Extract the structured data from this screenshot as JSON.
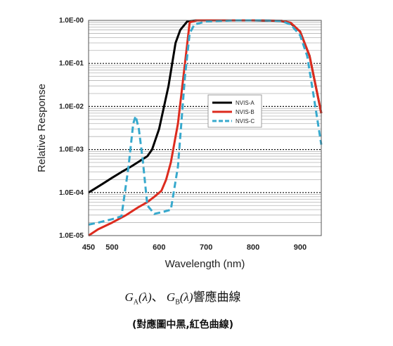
{
  "chart_data": {
    "type": "line",
    "title": "",
    "xlabel": "Wavelength (nm)",
    "ylabel": "Relative Response",
    "xlim": [
      450,
      945
    ],
    "ylim": [
      1e-05,
      1
    ],
    "yscale": "log",
    "x_ticks": [
      450,
      500,
      600,
      700,
      800,
      900
    ],
    "y_ticks": [
      1e-05,
      0.0001,
      0.001,
      0.01,
      0.1,
      1
    ],
    "y_tick_labels": [
      "1.0E-05",
      "1.0E-04",
      "1.0E-03",
      "1.0E-02",
      "1.0E-01",
      "1.0E-00"
    ],
    "grid": true,
    "legend_position": "center-right",
    "series": [
      {
        "name": "NVIS-A",
        "color": "#000000",
        "dash": "solid",
        "x": [
          450,
          480,
          500,
          520,
          540,
          560,
          575,
          585,
          600,
          620,
          635,
          645,
          660,
          680,
          720,
          800,
          860,
          880,
          900,
          920,
          945
        ],
        "y": [
          0.0001,
          0.00016,
          0.00022,
          0.0003,
          0.0004,
          0.00055,
          0.0007,
          0.001,
          0.003,
          0.03,
          0.3,
          0.6,
          0.95,
          1.0,
          1.0,
          1.0,
          0.97,
          0.85,
          0.55,
          0.15,
          0.007
        ]
      },
      {
        "name": "NVIS-B",
        "color": "#dd2b1e",
        "dash": "solid",
        "x": [
          450,
          470,
          500,
          530,
          555,
          575,
          590,
          605,
          615,
          625,
          640,
          655,
          665,
          680,
          720,
          800,
          860,
          880,
          900,
          920,
          945
        ],
        "y": [
          1e-05,
          1.4e-05,
          2e-05,
          3e-05,
          4.5e-05,
          6e-05,
          8e-05,
          0.00011,
          0.0002,
          0.0005,
          0.004,
          0.1,
          0.9,
          1.0,
          1.0,
          1.0,
          0.98,
          0.88,
          0.55,
          0.15,
          0.007
        ]
      },
      {
        "name": "NVIS-C",
        "color": "#37a9cd",
        "dash": "dashed",
        "x": [
          450,
          470,
          500,
          520,
          535,
          545,
          550,
          557,
          565,
          575,
          590,
          610,
          625,
          640,
          655,
          665,
          675,
          700,
          760,
          820,
          860,
          880,
          900,
          915,
          928,
          945
        ],
        "y": [
          1.8e-05,
          2e-05,
          2.4e-05,
          2.8e-05,
          0.0004,
          0.004,
          0.006,
          0.003,
          0.0006,
          5e-05,
          3.2e-05,
          3.6e-05,
          4e-05,
          0.0004,
          0.05,
          0.5,
          0.8,
          0.95,
          1.0,
          1.0,
          0.97,
          0.8,
          0.45,
          0.15,
          0.02,
          0.0013
        ]
      }
    ]
  },
  "caption": {
    "line1_g": "G",
    "line1_sub_a": "A",
    "line1_lambda_a": "(λ)",
    "line1_sep": "、 ",
    "line1_sub_b": "B",
    "line1_lambda_b": "(λ)",
    "line1_text": "響應曲線",
    "line2": "(對應圖中黑,紅色曲線)"
  }
}
